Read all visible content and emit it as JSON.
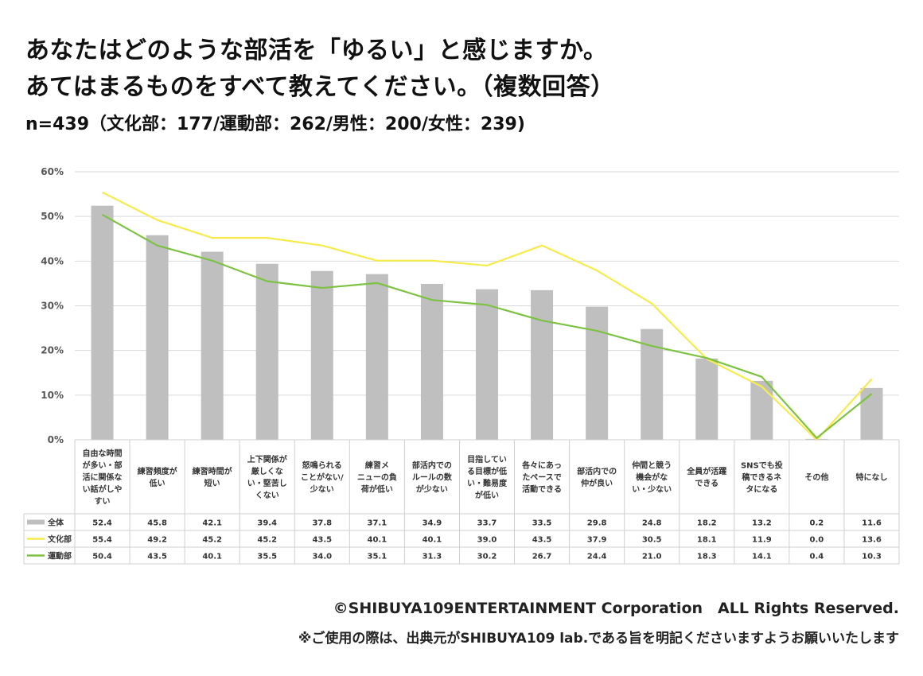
{
  "title_line1": "あなたはどのような部活を「ゆるい」と感じますか。",
  "title_line2": "あてはまるものをすべて教えてください。（複数回答）",
  "subtitle": "n=439（文化部：177/運動部：262/男性：200/女性：239)",
  "footer": {
    "copyright": "©SHIBUYA109ENTERTAINMENT Corporation　ALL Rights Reserved.",
    "note": "※ご使用の際は、出典元がSHIBUYA109 lab.である旨を明記くださいますようお願いいたします"
  },
  "colors": {
    "bar": "#bfbfbf",
    "culture": "#f5ec4c",
    "sports": "#7dc242",
    "grid": "#d9d9d9"
  },
  "chart_data": {
    "type": "bar",
    "categories": [
      [
        "自由な時間",
        "が多い・部",
        "活に関係な",
        "い話がしや",
        "すい"
      ],
      [
        "練習頻度が",
        "低い"
      ],
      [
        "練習時間が",
        "短い"
      ],
      [
        "上下関係が",
        "厳しくな",
        "い・堅苦し",
        "くない"
      ],
      [
        "怒鳴られる",
        "ことがない/",
        "少ない"
      ],
      [
        "練習メ",
        "ニューの負",
        "荷が低い"
      ],
      [
        "部活内での",
        "ルールの数",
        "が少ない"
      ],
      [
        "目指してい",
        "る目標が低",
        "い・難易度",
        "が低い"
      ],
      [
        "各々にあっ",
        "たペースで",
        "活動できる"
      ],
      [
        "部活内での",
        "仲が良い"
      ],
      [
        "仲間と競う",
        "機会がな",
        "い・少ない"
      ],
      [
        "全員が活躍",
        "できる"
      ],
      [
        "SNSでも投",
        "稿できるネ",
        "タになる"
      ],
      [
        "その他"
      ],
      [
        "特になし"
      ]
    ],
    "series": [
      {
        "name": "全体",
        "kind": "bar",
        "values": [
          52.4,
          45.8,
          42.1,
          39.4,
          37.8,
          37.1,
          34.9,
          33.7,
          33.5,
          29.8,
          24.8,
          18.2,
          13.2,
          0.2,
          11.6
        ]
      },
      {
        "name": "文化部",
        "kind": "line",
        "values": [
          55.4,
          49.2,
          45.2,
          45.2,
          43.5,
          40.1,
          40.1,
          39.0,
          43.5,
          37.9,
          30.5,
          18.1,
          11.9,
          0.0,
          13.6
        ]
      },
      {
        "name": "運動部",
        "kind": "line",
        "values": [
          50.4,
          43.5,
          40.1,
          35.5,
          34.0,
          35.1,
          31.3,
          30.2,
          26.7,
          24.4,
          21.0,
          18.3,
          14.1,
          0.4,
          10.3
        ]
      }
    ],
    "yticks": [
      "0%",
      "10%",
      "20%",
      "30%",
      "40%",
      "50%",
      "60%"
    ],
    "ylim": [
      0,
      60
    ],
    "grid": true,
    "legend": "data-table-left"
  }
}
